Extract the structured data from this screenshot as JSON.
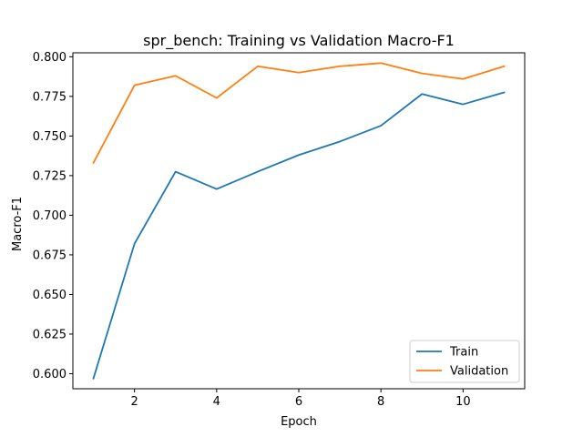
{
  "chart_data": {
    "type": "line",
    "title": "spr_bench: Training vs Validation Macro-F1",
    "xlabel": "Epoch",
    "ylabel": "Macro-F1",
    "x": [
      1,
      2,
      3,
      4,
      5,
      6,
      7,
      8,
      9,
      10,
      11
    ],
    "xlim": [
      0.5,
      11.5
    ],
    "ylim": [
      0.5905,
      0.8025
    ],
    "xticks": [
      2,
      4,
      6,
      8,
      10
    ],
    "yticks": [
      0.6,
      0.625,
      0.65,
      0.675,
      0.7,
      0.725,
      0.75,
      0.775,
      0.8
    ],
    "xtick_labels": [
      "2",
      "4",
      "6",
      "8",
      "10"
    ],
    "ytick_labels": [
      "0.600",
      "0.625",
      "0.650",
      "0.675",
      "0.700",
      "0.725",
      "0.750",
      "0.775",
      "0.800"
    ],
    "grid": false,
    "legend_position": "lower-right",
    "series": [
      {
        "name": "Train",
        "color": "#1f77b4",
        "values": [
          0.597,
          0.682,
          0.7275,
          0.7165,
          0.7275,
          0.738,
          0.7465,
          0.7565,
          0.7765,
          0.77,
          0.7775
        ]
      },
      {
        "name": "Validation",
        "color": "#ff7f0e",
        "values": [
          0.733,
          0.782,
          0.788,
          0.774,
          0.794,
          0.79,
          0.794,
          0.796,
          0.7895,
          0.786,
          0.794
        ]
      }
    ]
  }
}
